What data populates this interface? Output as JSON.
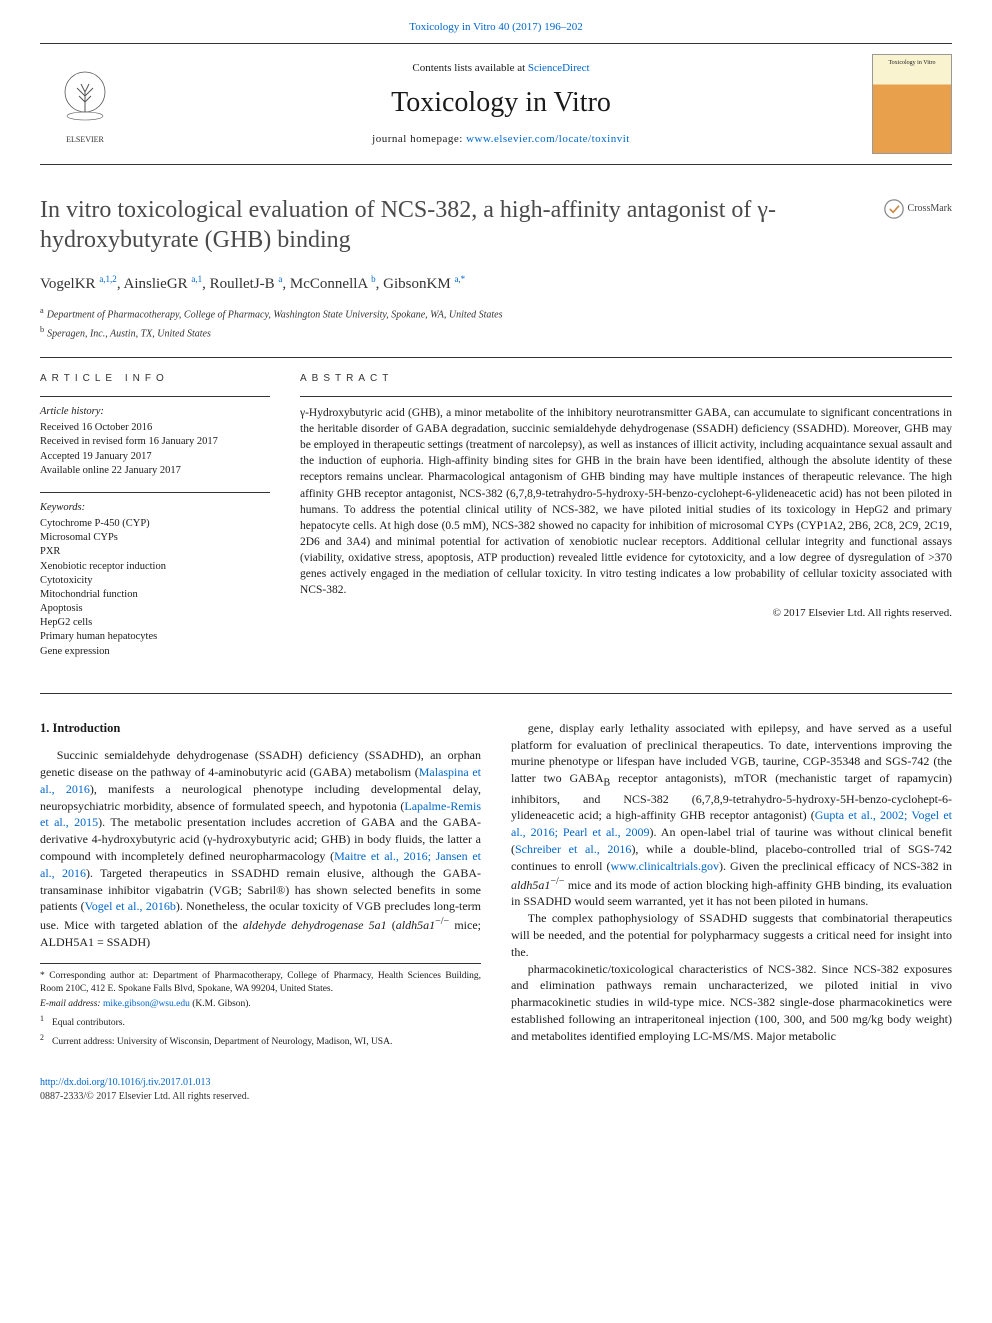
{
  "top_citation": "Toxicology in Vitro 40 (2017) 196–202",
  "masthead": {
    "contents_prefix": "Contents lists available at ",
    "contents_link": "ScienceDirect",
    "journal_name": "Toxicology in Vitro",
    "homepage_prefix": "journal homepage: ",
    "homepage_url": "www.elsevier.com/locate/toxinvit",
    "publisher_name": "ELSEVIER",
    "cover_label": "Toxicology in Vitro"
  },
  "crossmark_label": "CrossMark",
  "article": {
    "title": "In vitro toxicological evaluation of NCS-382, a high-affinity antagonist of γ-hydroxybutyrate (GHB) binding",
    "authors_html": "VogelKR <sup>a,1,2</sup>, AinslieGR <sup>a,1</sup>, RoulletJ-B <sup>a</sup>, McConnellA <sup>b</sup>, GibsonKM <sup>a,*</sup>",
    "affiliations": [
      {
        "marker": "a",
        "text": "Department of Pharmacotherapy, College of Pharmacy, Washington State University, Spokane, WA, United States"
      },
      {
        "marker": "b",
        "text": "Speragen, Inc., Austin, TX, United States"
      }
    ]
  },
  "article_info": {
    "heading": "ARTICLE INFO",
    "history_label": "Article history:",
    "history": [
      "Received 16 October 2016",
      "Received in revised form 16 January 2017",
      "Accepted 19 January 2017",
      "Available online 22 January 2017"
    ],
    "keywords_label": "Keywords:",
    "keywords": [
      "Cytochrome P-450 (CYP)",
      "Microsomal CYPs",
      "PXR",
      "Xenobiotic receptor induction",
      "Cytotoxicity",
      "Mitochondrial function",
      "Apoptosis",
      "HepG2 cells",
      "Primary human hepatocytes",
      "Gene expression"
    ]
  },
  "abstract": {
    "heading": "ABSTRACT",
    "text": "γ-Hydroxybutyric acid (GHB), a minor metabolite of the inhibitory neurotransmitter GABA, can accumulate to significant concentrations in the heritable disorder of GABA degradation, succinic semialdehyde dehydrogenase (SSADH) deficiency (SSADHD). Moreover, GHB may be employed in therapeutic settings (treatment of narcolepsy), as well as instances of illicit activity, including acquaintance sexual assault and the induction of euphoria. High-affinity binding sites for GHB in the brain have been identified, although the absolute identity of these receptors remains unclear. Pharmacological antagonism of GHB binding may have multiple instances of therapeutic relevance. The high affinity GHB receptor antagonist, NCS-382 (6,7,8,9-tetrahydro-5-hydroxy-5H-benzo-cyclohept-6-ylideneacetic acid) has not been piloted in humans. To address the potential clinical utility of NCS-382, we have piloted initial studies of its toxicology in HepG2 and primary hepatocyte cells. At high dose (0.5 mM), NCS-382 showed no capacity for inhibition of microsomal CYPs (CYP1A2, 2B6, 2C8, 2C9, 2C19, 2D6 and 3A4) and minimal potential for activation of xenobiotic nuclear receptors. Additional cellular integrity and functional assays (viability, oxidative stress, apoptosis, ATP production) revealed little evidence for cytotoxicity, and a low degree of dysregulation of >370 genes actively engaged in the mediation of cellular toxicity. In vitro testing indicates a low probability of cellular toxicity associated with NCS-382.",
    "copyright": "© 2017 Elsevier Ltd. All rights reserved."
  },
  "body": {
    "section_heading": "1. Introduction",
    "col1_p1": "Succinic semialdehyde dehydrogenase (SSADH) deficiency (SSADHD), an orphan genetic disease on the pathway of 4-aminobutyric acid (GABA) metabolism (Malaspina et al., 2016), manifests a neurological phenotype including developmental delay, neuropsychiatric morbidity, absence of formulated speech, and hypotonia (Lapalme-Remis et al., 2015). The metabolic presentation includes accretion of GABA and the GABA-derivative 4-hydroxybutyric acid (γ-hydroxybutyric acid; GHB) in body fluids, the latter a compound with incompletely defined neuropharmacology (Maitre et al., 2016; Jansen et al., 2016). Targeted therapeutics in SSADHD remain elusive, although the GABA-transaminase inhibitor vigabatrin (VGB; Sabril®) has shown selected benefits in some patients (Vogel et al., 2016b). Nonetheless, the ocular toxicity of VGB precludes long-term use. Mice with targeted ablation of the aldehyde dehydrogenase 5a1 (aldh5a1⁻/⁻ mice; ALDH5A1 = SSADH)",
    "col2_p1": "gene, display early lethality associated with epilepsy, and have served as a useful platform for evaluation of preclinical therapeutics. To date, interventions improving the murine phenotype or lifespan have included VGB, taurine, CGP-35348 and SGS-742 (the latter two GABA_B receptor antagonists), mTOR (mechanistic target of rapamycin) inhibitors, and NCS-382 (6,7,8,9-tetrahydro-5-hydroxy-5H-benzo-cyclohept-6-ylideneacetic acid; a high-affinity GHB receptor antagonist) (Gupta et al., 2002; Vogel et al., 2016; Pearl et al., 2009). An open-label trial of taurine was without clinical benefit (Schreiber et al., 2016), while a double-blind, placebo-controlled trial of SGS-742 continues to enroll (www.clinicaltrials.gov). Given the preclinical efficacy of NCS-382 in aldh5a1⁻/⁻ mice and its mode of action blocking high-affinity GHB binding, its evaluation in SSADHD would seem warranted, yet it has not been piloted in humans.",
    "col2_p2": "The complex pathophysiology of SSADHD suggests that combinatorial therapeutics will be needed, and the potential for polypharmacy suggests a critical need for insight into the.",
    "col2_p3": "pharmacokinetic/toxicological characteristics of NCS-382. Since NCS-382 exposures and elimination pathways remain uncharacterized, we piloted initial in vivo pharmacokinetic studies in wild-type mice. NCS-382 single-dose pharmacokinetics were established following an intraperitoneal injection (100, 300, and 500 mg/kg body weight) and metabolites identified employing LC-MS/MS. Major metabolic"
  },
  "footnotes": {
    "corr": "* Corresponding author at: Department of Pharmacotherapy, College of Pharmacy, Health Sciences Building, Room 210C, 412 E. Spokane Falls Blvd, Spokane, WA 99204, United States.",
    "email_label": "E-mail address: ",
    "email": "mike.gibson@wsu.edu",
    "email_suffix": " (K.M. Gibson).",
    "fn1": "Equal contributors.",
    "fn2": "Current address: University of Wisconsin, Department of Neurology, Madison, WI, USA."
  },
  "footer": {
    "doi": "http://dx.doi.org/10.1016/j.tiv.2017.01.013",
    "issn_line": "0887-2333/© 2017 Elsevier Ltd. All rights reserved."
  },
  "colors": {
    "link": "#0066cc",
    "text": "#1a1a1a",
    "rule": "#333333"
  }
}
